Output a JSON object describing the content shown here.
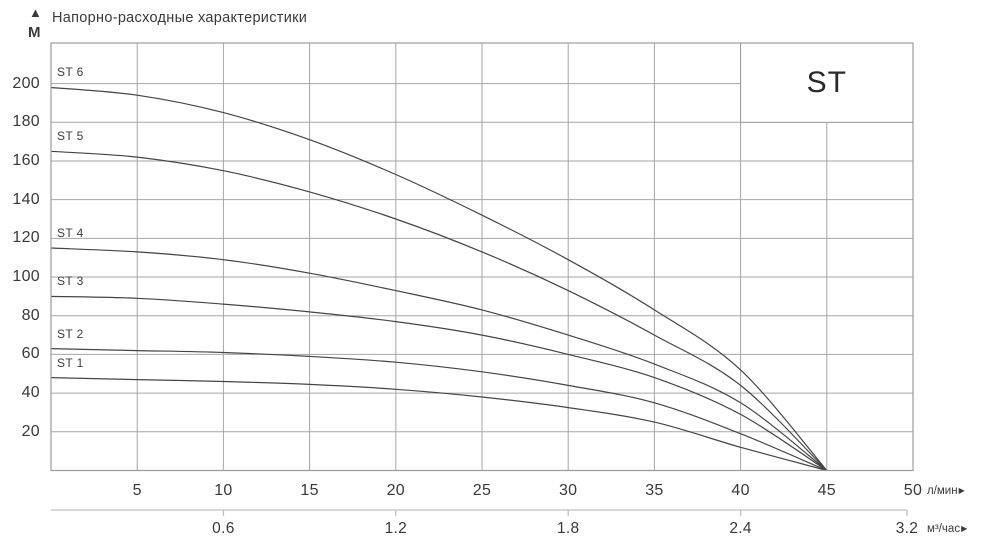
{
  "header": {
    "title": "Напорно-расходные характеристики",
    "y_axis_unit": "М"
  },
  "icons": {
    "up_triangle": "▲",
    "right_triangle": "▶"
  },
  "chart_data": {
    "type": "line",
    "title": "Напорно-расходные характеристики",
    "ylabel": "М",
    "xlabel": "л/мин",
    "xlabel_secondary": "м³/час",
    "grid": true,
    "legend": {
      "label": "ST",
      "position": "top-right"
    },
    "x": [
      0,
      5,
      10,
      15,
      20,
      25,
      30,
      35,
      40,
      45
    ],
    "series": [
      {
        "name": "ST 6",
        "values": [
          198,
          194,
          185,
          171,
          153,
          132,
          109,
          83,
          52,
          0
        ]
      },
      {
        "name": "ST 5",
        "values": [
          165,
          162,
          155,
          144,
          130,
          113,
          93,
          70,
          44,
          0
        ]
      },
      {
        "name": "ST 4",
        "values": [
          115,
          113,
          109,
          102,
          93,
          83,
          70,
          55,
          35,
          0
        ]
      },
      {
        "name": "ST 3",
        "values": [
          90,
          89,
          86,
          82,
          77,
          70,
          60,
          48,
          29,
          0
        ]
      },
      {
        "name": "ST 2",
        "values": [
          63,
          62,
          61,
          59,
          56,
          51,
          44,
          35,
          19,
          0
        ]
      },
      {
        "name": "ST 1",
        "values": [
          48,
          47,
          46,
          44.5,
          42,
          38,
          32.5,
          25,
          12,
          0
        ]
      }
    ],
    "x_axis": {
      "range": [
        0,
        50
      ],
      "ticks": [
        5,
        10,
        15,
        20,
        25,
        30,
        35,
        40,
        45,
        50
      ],
      "unit": "л/мин"
    },
    "y_axis": {
      "range": [
        0,
        221
      ],
      "ticks": [
        20,
        40,
        60,
        80,
        100,
        120,
        140,
        160,
        180,
        200
      ],
      "unit": "М"
    },
    "x_axis_secondary": {
      "unit": "м³/час",
      "ticks": [
        {
          "label": "0.6",
          "q": 10
        },
        {
          "label": "1.2",
          "q": 20
        },
        {
          "label": "1.8",
          "q": 30
        },
        {
          "label": "2.4",
          "q": 40
        },
        {
          "label": "3.2",
          "q": 49.65
        }
      ]
    },
    "colors": {
      "curve": "#454545",
      "grid": "#a6a6a6",
      "frame": "#9b9b9b",
      "secondary_axis": "#c0c0c0",
      "text": "#39393d",
      "background": "#ffffff"
    }
  }
}
